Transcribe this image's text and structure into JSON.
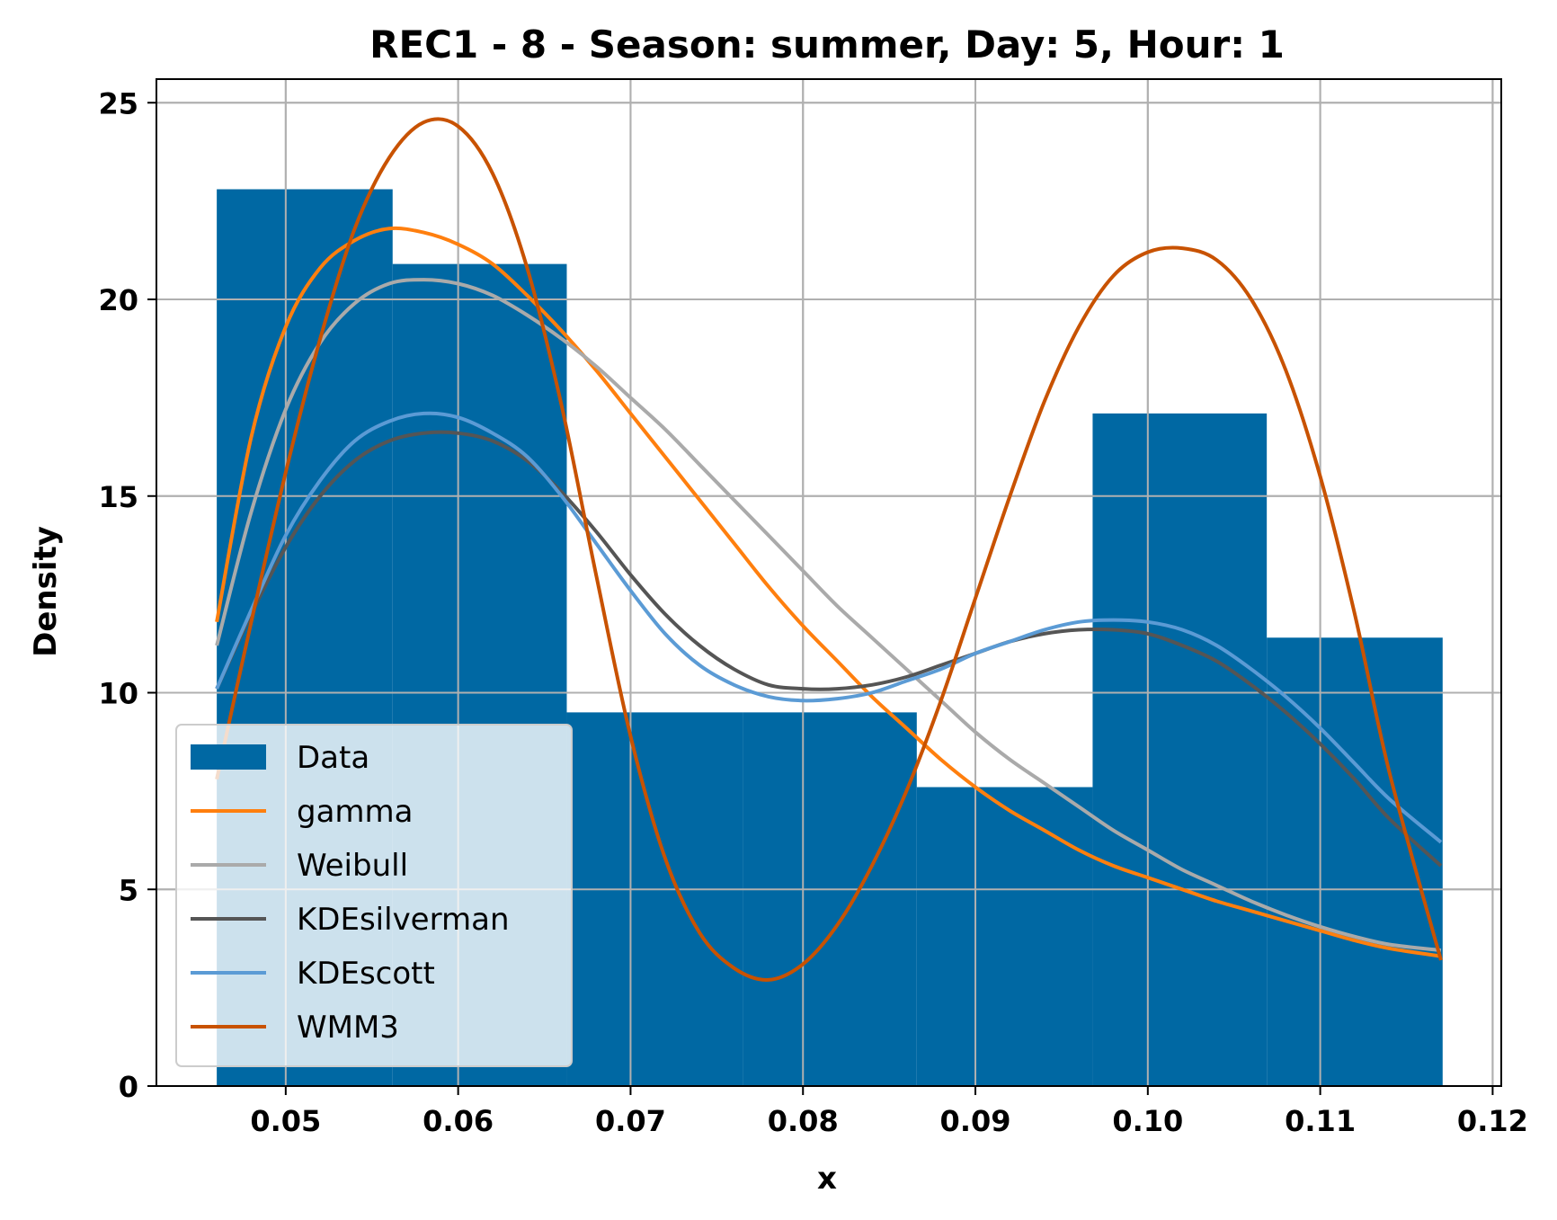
{
  "chart_data": {
    "type": "histogram_with_density_curves",
    "title": "REC1 - 8 - Season: summer, Day: 5, Hour: 1",
    "xlabel": "x",
    "ylabel": "Density",
    "xlim": [
      0.0425,
      0.1205
    ],
    "ylim": [
      0,
      25.6
    ],
    "xticks": [
      0.05,
      0.06,
      0.07,
      0.08,
      0.09,
      0.1,
      0.11,
      0.12
    ],
    "xtick_labels": [
      "0.05",
      "0.06",
      "0.07",
      "0.08",
      "0.09",
      "0.10",
      "0.11",
      "0.12"
    ],
    "yticks": [
      0,
      5,
      10,
      15,
      20,
      25
    ],
    "ytick_labels": [
      "0",
      "5",
      "10",
      "15",
      "20",
      "25"
    ],
    "grid": true,
    "legend_position": "lower-left",
    "histogram": {
      "name": "Data",
      "color": "#0068a3",
      "bins": [
        {
          "x0": 0.046,
          "x1": 0.0562,
          "density": 22.8
        },
        {
          "x0": 0.0562,
          "x1": 0.0663,
          "density": 20.9
        },
        {
          "x0": 0.0663,
          "x1": 0.0765,
          "density": 9.5
        },
        {
          "x0": 0.0765,
          "x1": 0.0866,
          "density": 9.5
        },
        {
          "x0": 0.0866,
          "x1": 0.0968,
          "density": 7.6
        },
        {
          "x0": 0.0968,
          "x1": 0.1069,
          "density": 17.1
        },
        {
          "x0": 0.1069,
          "x1": 0.1171,
          "density": 11.4
        }
      ]
    },
    "series": [
      {
        "name": "gamma",
        "color": "#ff7f0e",
        "points": [
          [
            0.046,
            11.8
          ],
          [
            0.048,
            16.5
          ],
          [
            0.05,
            19.3
          ],
          [
            0.052,
            20.8
          ],
          [
            0.054,
            21.5
          ],
          [
            0.056,
            21.8
          ],
          [
            0.058,
            21.7
          ],
          [
            0.06,
            21.4
          ],
          [
            0.062,
            20.9
          ],
          [
            0.064,
            20.1
          ],
          [
            0.066,
            19.2
          ],
          [
            0.068,
            18.2
          ],
          [
            0.07,
            17.1
          ],
          [
            0.072,
            16.0
          ],
          [
            0.074,
            14.9
          ],
          [
            0.076,
            13.8
          ],
          [
            0.078,
            12.7
          ],
          [
            0.08,
            11.7
          ],
          [
            0.082,
            10.8
          ],
          [
            0.084,
            9.9
          ],
          [
            0.086,
            9.1
          ],
          [
            0.088,
            8.3
          ],
          [
            0.09,
            7.6
          ],
          [
            0.092,
            7.0
          ],
          [
            0.094,
            6.5
          ],
          [
            0.096,
            6.0
          ],
          [
            0.098,
            5.6
          ],
          [
            0.1,
            5.3
          ],
          [
            0.102,
            5.0
          ],
          [
            0.104,
            4.7
          ],
          [
            0.106,
            4.45
          ],
          [
            0.108,
            4.2
          ],
          [
            0.11,
            3.95
          ],
          [
            0.112,
            3.7
          ],
          [
            0.114,
            3.5
          ],
          [
            0.117,
            3.3
          ]
        ]
      },
      {
        "name": "Weibull",
        "color": "#aaaaaa",
        "points": [
          [
            0.046,
            11.2
          ],
          [
            0.048,
            14.6
          ],
          [
            0.05,
            17.2
          ],
          [
            0.052,
            18.9
          ],
          [
            0.054,
            19.9
          ],
          [
            0.056,
            20.4
          ],
          [
            0.058,
            20.5
          ],
          [
            0.06,
            20.4
          ],
          [
            0.062,
            20.1
          ],
          [
            0.064,
            19.6
          ],
          [
            0.066,
            19.0
          ],
          [
            0.068,
            18.3
          ],
          [
            0.07,
            17.5
          ],
          [
            0.072,
            16.7
          ],
          [
            0.074,
            15.8
          ],
          [
            0.076,
            14.9
          ],
          [
            0.078,
            14.0
          ],
          [
            0.08,
            13.1
          ],
          [
            0.082,
            12.2
          ],
          [
            0.084,
            11.4
          ],
          [
            0.086,
            10.6
          ],
          [
            0.088,
            9.8
          ],
          [
            0.09,
            9.0
          ],
          [
            0.092,
            8.3
          ],
          [
            0.094,
            7.7
          ],
          [
            0.096,
            7.1
          ],
          [
            0.098,
            6.5
          ],
          [
            0.1,
            6.0
          ],
          [
            0.102,
            5.5
          ],
          [
            0.104,
            5.1
          ],
          [
            0.106,
            4.7
          ],
          [
            0.108,
            4.35
          ],
          [
            0.11,
            4.05
          ],
          [
            0.112,
            3.8
          ],
          [
            0.114,
            3.6
          ],
          [
            0.117,
            3.45
          ]
        ]
      },
      {
        "name": "KDEsilverman",
        "color": "#555555",
        "points": [
          [
            0.046,
            10.1
          ],
          [
            0.048,
            12.0
          ],
          [
            0.05,
            13.7
          ],
          [
            0.052,
            15.0
          ],
          [
            0.054,
            15.9
          ],
          [
            0.056,
            16.4
          ],
          [
            0.058,
            16.6
          ],
          [
            0.06,
            16.6
          ],
          [
            0.062,
            16.4
          ],
          [
            0.064,
            15.9
          ],
          [
            0.066,
            15.1
          ],
          [
            0.068,
            14.1
          ],
          [
            0.07,
            13.0
          ],
          [
            0.072,
            12.0
          ],
          [
            0.074,
            11.2
          ],
          [
            0.076,
            10.6
          ],
          [
            0.078,
            10.2
          ],
          [
            0.08,
            10.1
          ],
          [
            0.082,
            10.1
          ],
          [
            0.084,
            10.2
          ],
          [
            0.086,
            10.4
          ],
          [
            0.088,
            10.7
          ],
          [
            0.09,
            11.0
          ],
          [
            0.092,
            11.3
          ],
          [
            0.094,
            11.5
          ],
          [
            0.096,
            11.6
          ],
          [
            0.098,
            11.6
          ],
          [
            0.1,
            11.5
          ],
          [
            0.102,
            11.2
          ],
          [
            0.104,
            10.8
          ],
          [
            0.106,
            10.2
          ],
          [
            0.108,
            9.5
          ],
          [
            0.11,
            8.7
          ],
          [
            0.112,
            7.8
          ],
          [
            0.114,
            6.8
          ],
          [
            0.117,
            5.6
          ]
        ]
      },
      {
        "name": "KDEscott",
        "color": "#5b9bd5",
        "points": [
          [
            0.046,
            10.1
          ],
          [
            0.048,
            12.1
          ],
          [
            0.05,
            14.0
          ],
          [
            0.052,
            15.4
          ],
          [
            0.054,
            16.4
          ],
          [
            0.056,
            16.9
          ],
          [
            0.058,
            17.1
          ],
          [
            0.06,
            17.0
          ],
          [
            0.062,
            16.6
          ],
          [
            0.064,
            16.0
          ],
          [
            0.066,
            15.0
          ],
          [
            0.068,
            13.8
          ],
          [
            0.07,
            12.6
          ],
          [
            0.072,
            11.5
          ],
          [
            0.074,
            10.7
          ],
          [
            0.076,
            10.2
          ],
          [
            0.078,
            9.9
          ],
          [
            0.08,
            9.8
          ],
          [
            0.082,
            9.85
          ],
          [
            0.084,
            10.0
          ],
          [
            0.086,
            10.3
          ],
          [
            0.088,
            10.6
          ],
          [
            0.09,
            11.0
          ],
          [
            0.092,
            11.3
          ],
          [
            0.094,
            11.6
          ],
          [
            0.096,
            11.8
          ],
          [
            0.098,
            11.85
          ],
          [
            0.1,
            11.8
          ],
          [
            0.102,
            11.6
          ],
          [
            0.104,
            11.2
          ],
          [
            0.106,
            10.6
          ],
          [
            0.108,
            9.9
          ],
          [
            0.11,
            9.1
          ],
          [
            0.112,
            8.2
          ],
          [
            0.114,
            7.3
          ],
          [
            0.117,
            6.2
          ]
        ]
      },
      {
        "name": "WMM3",
        "color": "#c85200",
        "points": [
          [
            0.046,
            7.8
          ],
          [
            0.048,
            11.8
          ],
          [
            0.05,
            15.6
          ],
          [
            0.052,
            19.0
          ],
          [
            0.054,
            21.8
          ],
          [
            0.056,
            23.6
          ],
          [
            0.058,
            24.5
          ],
          [
            0.06,
            24.4
          ],
          [
            0.062,
            23.2
          ],
          [
            0.064,
            20.8
          ],
          [
            0.066,
            17.3
          ],
          [
            0.068,
            13.0
          ],
          [
            0.07,
            8.9
          ],
          [
            0.072,
            5.8
          ],
          [
            0.074,
            3.9
          ],
          [
            0.076,
            3.0
          ],
          [
            0.078,
            2.7
          ],
          [
            0.08,
            3.1
          ],
          [
            0.082,
            4.1
          ],
          [
            0.084,
            5.6
          ],
          [
            0.086,
            7.5
          ],
          [
            0.088,
            9.8
          ],
          [
            0.09,
            12.4
          ],
          [
            0.092,
            15.0
          ],
          [
            0.094,
            17.4
          ],
          [
            0.096,
            19.3
          ],
          [
            0.098,
            20.6
          ],
          [
            0.1,
            21.2
          ],
          [
            0.102,
            21.3
          ],
          [
            0.104,
            21.0
          ],
          [
            0.106,
            20.0
          ],
          [
            0.108,
            18.2
          ],
          [
            0.11,
            15.5
          ],
          [
            0.112,
            12.0
          ],
          [
            0.114,
            8.0
          ],
          [
            0.117,
            3.2
          ]
        ]
      }
    ]
  }
}
